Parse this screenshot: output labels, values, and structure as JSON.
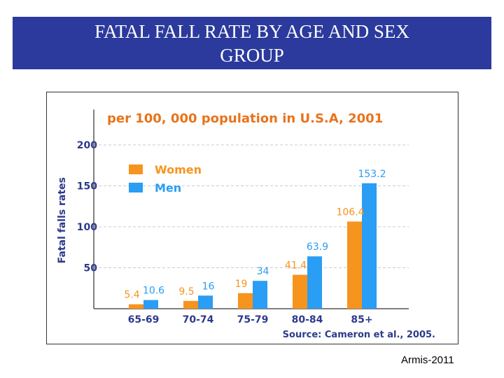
{
  "slide": {
    "title_line1": "FATAL FALL RATE BY AGE AND SEX",
    "title_line2": "GROUP",
    "footer": "Armis-2011"
  },
  "colors": {
    "title_bg": "#2b3a9c",
    "chart_title": "#e8731a",
    "women": "#f7941d",
    "men": "#2a9df4",
    "axis_text": "#2d3a8c"
  },
  "chart_data": {
    "type": "bar",
    "title": "per 100, 000 population in U.S.A, 2001",
    "ylabel": "Fatal falls rates",
    "xlabel": "",
    "source": "Source: Cameron et al., 2005.",
    "categories": [
      "65-69",
      "70-74",
      "75-79",
      "80-84",
      "85+"
    ],
    "series": [
      {
        "name": "Women",
        "values": [
          5.4,
          9.5,
          19,
          41.4,
          106.4
        ],
        "labels": [
          "5.4",
          "9.5",
          "19",
          "41.4",
          "106.4"
        ]
      },
      {
        "name": "Men",
        "values": [
          10.6,
          16,
          34,
          63.9,
          153.2
        ],
        "labels": [
          "10.6",
          "16",
          "34",
          "63.9",
          "153.2"
        ]
      }
    ],
    "yticks": [
      50,
      100,
      150,
      200
    ],
    "ylim": [
      0,
      250
    ],
    "grid": true,
    "legend": "upper-left"
  }
}
